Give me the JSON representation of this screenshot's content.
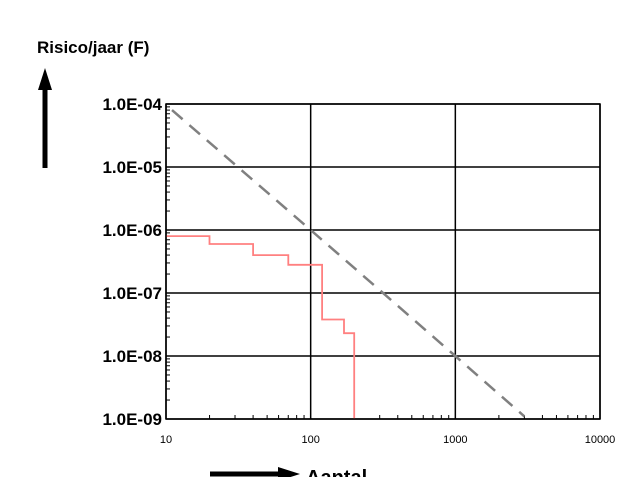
{
  "chart_data": {
    "type": "line",
    "title": "Risico/jaar (F)",
    "xlabel": "Aantal",
    "ylabel": "",
    "x_scale": "log",
    "y_scale": "log",
    "xlim": [
      10,
      10000
    ],
    "ylim": [
      1e-09,
      0.0001
    ],
    "grid": true,
    "x_ticks": [
      "10",
      "100",
      "1000",
      "10000"
    ],
    "y_ticks": [
      "1.0E-09",
      "1.0E-08",
      "1.0E-07",
      "1.0E-06",
      "1.0E-05",
      "1.0E-04"
    ],
    "series": [
      {
        "style": "step",
        "color": "#ff8080",
        "points": [
          [
            10,
            8e-07
          ],
          [
            20,
            8e-07
          ],
          [
            20,
            6e-07
          ],
          [
            40,
            6e-07
          ],
          [
            40,
            4e-07
          ],
          [
            70,
            4e-07
          ],
          [
            70,
            2.8e-07
          ],
          [
            120,
            2.8e-07
          ],
          [
            120,
            3.8e-08
          ],
          [
            170,
            3.8e-08
          ],
          [
            170,
            2.3e-08
          ],
          [
            200,
            2.3e-08
          ],
          [
            200,
            1e-09
          ]
        ]
      },
      {
        "style": "dashed",
        "color": "#808080",
        "points": [
          [
            11,
            8e-05
          ],
          [
            100,
            1e-06
          ],
          [
            1000,
            1e-08
          ],
          [
            3000,
            1.1e-09
          ]
        ]
      }
    ]
  }
}
